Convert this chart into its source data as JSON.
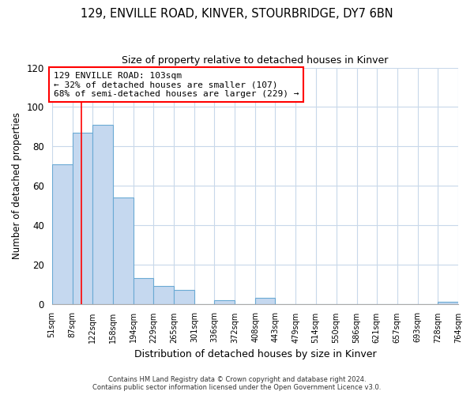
{
  "title1": "129, ENVILLE ROAD, KINVER, STOURBRIDGE, DY7 6BN",
  "title2": "Size of property relative to detached houses in Kinver",
  "xlabel": "Distribution of detached houses by size in Kinver",
  "ylabel": "Number of detached properties",
  "bin_edges": [
    51,
    87,
    122,
    158,
    194,
    229,
    265,
    301,
    336,
    372,
    408,
    443,
    479,
    514,
    550,
    586,
    621,
    657,
    693,
    728,
    764
  ],
  "bar_heights": [
    71,
    87,
    91,
    54,
    13,
    9,
    7,
    0,
    2,
    0,
    3,
    0,
    0,
    0,
    0,
    0,
    0,
    0,
    0,
    1
  ],
  "bar_color": "#c5d8ef",
  "bar_edge_color": "#6aaad4",
  "red_line_x": 103,
  "annotation_title": "129 ENVILLE ROAD: 103sqm",
  "annotation_line1": "← 32% of detached houses are smaller (107)",
  "annotation_line2": "68% of semi-detached houses are larger (229) →",
  "ylim": [
    0,
    120
  ],
  "yticks": [
    0,
    20,
    40,
    60,
    80,
    100,
    120
  ],
  "footer1": "Contains HM Land Registry data © Crown copyright and database right 2024.",
  "footer2": "Contains public sector information licensed under the Open Government Licence v3.0.",
  "background_color": "#ffffff",
  "grid_color": "#c8d8ea"
}
